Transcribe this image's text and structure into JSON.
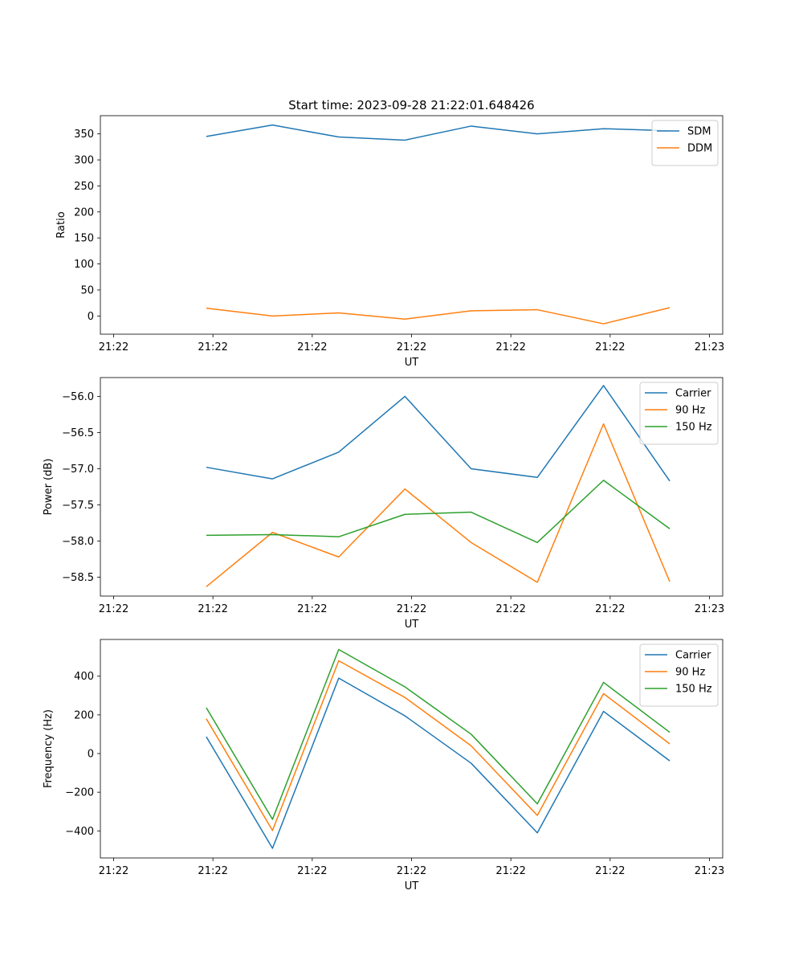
{
  "chart_data": [
    {
      "type": "line",
      "title": "Start time: 2023-09-28 21:22:01.648426",
      "xlabel": "UT",
      "ylabel": "Ratio",
      "x": [
        1.6,
        2.6,
        3.6,
        4.6,
        5.6,
        6.6,
        7.6,
        8.6
      ],
      "xlim": [
        0,
        9.4
      ],
      "x_tick_values": [
        0.2,
        1.7,
        3.2,
        4.7,
        6.2,
        7.7,
        9.2
      ],
      "x_tick_labels": [
        "21:22",
        "21:22",
        "21:22",
        "21:22",
        "21:22",
        "21:22",
        "21:23"
      ],
      "ylim": [
        -35,
        385
      ],
      "y_ticks": [
        0,
        50,
        100,
        150,
        200,
        250,
        300,
        350
      ],
      "series": [
        {
          "name": "SDM",
          "color": "#1f77b4",
          "values": [
            345,
            367,
            344,
            338,
            365,
            350,
            360,
            356
          ]
        },
        {
          "name": "DDM",
          "color": "#ff7f0e",
          "values": [
            15,
            0,
            6,
            -6,
            10,
            12,
            -15,
            16
          ]
        }
      ],
      "legend": "upper right"
    },
    {
      "type": "line",
      "title": "",
      "xlabel": "UT",
      "ylabel": "Power (dB)",
      "x": [
        1.6,
        2.6,
        3.6,
        4.6,
        5.6,
        6.6,
        7.6,
        8.6
      ],
      "xlim": [
        0,
        9.4
      ],
      "x_tick_values": [
        0.2,
        1.7,
        3.2,
        4.7,
        6.2,
        7.7,
        9.2
      ],
      "x_tick_labels": [
        "21:22",
        "21:22",
        "21:22",
        "21:22",
        "21:22",
        "21:22",
        "21:23"
      ],
      "ylim": [
        -58.76,
        -55.74
      ],
      "y_ticks": [
        -58.5,
        -58.0,
        -57.5,
        -57.0,
        -56.5,
        -56.0
      ],
      "y_tick_labels": [
        "−58.5",
        "−58.0",
        "−57.5",
        "−57.0",
        "−56.5",
        "−56.0"
      ],
      "series": [
        {
          "name": "Carrier",
          "color": "#1f77b4",
          "values": [
            -56.98,
            -57.14,
            -56.77,
            -56.0,
            -57.0,
            -57.12,
            -55.85,
            -57.17
          ]
        },
        {
          "name": "90 Hz",
          "color": "#ff7f0e",
          "values": [
            -58.63,
            -57.88,
            -58.22,
            -57.28,
            -58.02,
            -58.57,
            -56.38,
            -58.56
          ]
        },
        {
          "name": "150 Hz",
          "color": "#2ca02c",
          "values": [
            -57.92,
            -57.91,
            -57.94,
            -57.63,
            -57.6,
            -58.02,
            -57.16,
            -57.83
          ]
        }
      ],
      "legend": "upper right"
    },
    {
      "type": "line",
      "title": "",
      "xlabel": "UT",
      "ylabel": "Frequency (Hz)",
      "x": [
        1.6,
        2.6,
        3.6,
        4.6,
        5.6,
        6.6,
        7.6,
        8.6
      ],
      "xlim": [
        0,
        9.4
      ],
      "x_tick_values": [
        0.2,
        1.7,
        3.2,
        4.7,
        6.2,
        7.7,
        9.2
      ],
      "x_tick_labels": [
        "21:22",
        "21:22",
        "21:22",
        "21:22",
        "21:22",
        "21:22",
        "21:23"
      ],
      "ylim": [
        -540,
        590
      ],
      "y_ticks": [
        -400,
        -200,
        0,
        200,
        400
      ],
      "y_tick_labels": [
        "−400",
        "−200",
        "0",
        "200",
        "400"
      ],
      "series": [
        {
          "name": "Carrier",
          "color": "#1f77b4",
          "values": [
            87,
            -490,
            390,
            195,
            -50,
            -410,
            218,
            -38
          ]
        },
        {
          "name": "90 Hz",
          "color": "#ff7f0e",
          "values": [
            180,
            -398,
            480,
            290,
            40,
            -320,
            310,
            50
          ]
        },
        {
          "name": "150 Hz",
          "color": "#2ca02c",
          "values": [
            237,
            -340,
            538,
            345,
            100,
            -260,
            368,
            110
          ]
        }
      ],
      "legend": "upper right"
    }
  ]
}
